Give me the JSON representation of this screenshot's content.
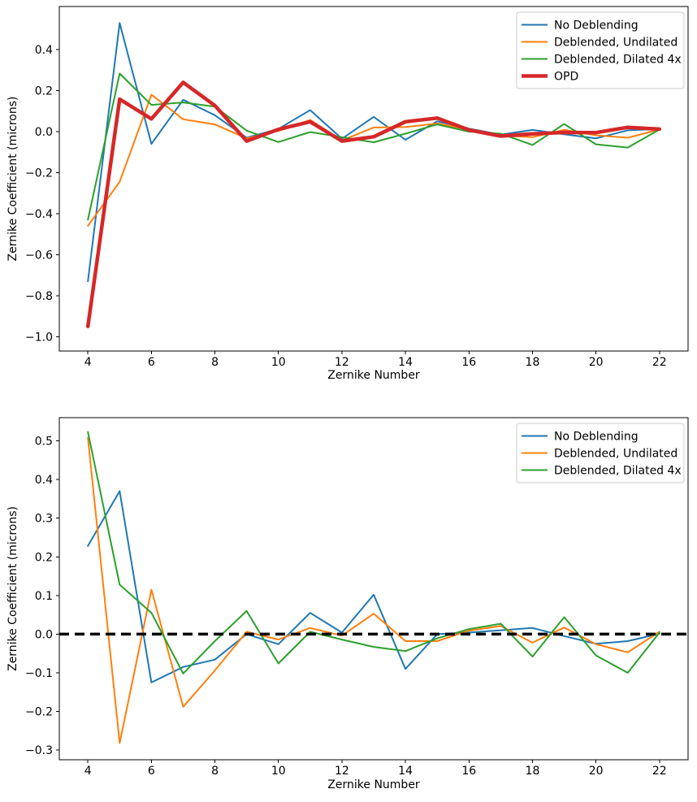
{
  "figure": {
    "background": "#ffffff",
    "xlabel": "Zernike Number",
    "ylabel": "Zernike Coefficient (microns)"
  },
  "colors": {
    "blue": "#1f77b4",
    "orange": "#ff7f0e",
    "green": "#2ca02c",
    "red": "#d62728",
    "zero_line": "#000000",
    "legend_border": "#cccccc"
  },
  "chart_data": [
    {
      "type": "line",
      "title": "",
      "xlabel": "Zernike Number",
      "ylabel": "Zernike Coefficient (microns)",
      "x": [
        4,
        5,
        6,
        7,
        8,
        9,
        10,
        11,
        12,
        13,
        14,
        15,
        16,
        17,
        18,
        19,
        20,
        21,
        22
      ],
      "xticks": [
        4,
        6,
        8,
        10,
        12,
        14,
        16,
        18,
        20,
        22
      ],
      "yticks": [
        0.4,
        0.2,
        0.0,
        -0.2,
        -0.4,
        -0.6,
        -0.8,
        -1.0
      ],
      "xlim": [
        3.1,
        22.9
      ],
      "ylim": [
        -1.07,
        0.61
      ],
      "grid": false,
      "zero_line": false,
      "legend_position": "upper right",
      "series": [
        {
          "name": "No Deblending",
          "color": "#1f77b4",
          "line_width": 2,
          "values": [
            -0.73,
            0.53,
            -0.06,
            0.155,
            0.08,
            -0.03,
            0.013,
            0.105,
            -0.035,
            0.072,
            -0.04,
            0.05,
            0.015,
            -0.015,
            0.008,
            -0.013,
            -0.033,
            0.006,
            0.013
          ]
        },
        {
          "name": "Deblended, Undilated",
          "color": "#ff7f0e",
          "line_width": 2,
          "values": [
            -0.46,
            -0.245,
            0.18,
            0.06,
            0.035,
            -0.033,
            0.003,
            0.057,
            -0.043,
            0.02,
            0.022,
            0.04,
            0.01,
            -0.02,
            -0.027,
            0.008,
            -0.018,
            -0.03,
            0.01
          ]
        },
        {
          "name": "Deblended, Dilated 4x",
          "color": "#2ca02c",
          "line_width": 2,
          "values": [
            -0.43,
            0.283,
            0.13,
            0.142,
            0.122,
            0.005,
            -0.051,
            -0.002,
            -0.027,
            -0.052,
            -0.01,
            0.035,
            0.0,
            -0.01,
            -0.065,
            0.037,
            -0.062,
            -0.078,
            0.01
          ]
        },
        {
          "name": "OPD",
          "color": "#d62728",
          "line_width": 4.5,
          "values": [
            -0.95,
            0.158,
            0.062,
            0.24,
            0.127,
            -0.046,
            0.011,
            0.048,
            -0.046,
            -0.025,
            0.048,
            0.066,
            0.008,
            -0.022,
            -0.011,
            -0.004,
            -0.005,
            0.021,
            0.012
          ]
        }
      ]
    },
    {
      "type": "line",
      "title": "",
      "xlabel": "Zernike Number",
      "ylabel": "Zernike Coefficient (microns)",
      "x": [
        4,
        5,
        6,
        7,
        8,
        9,
        10,
        11,
        12,
        13,
        14,
        15,
        16,
        17,
        18,
        19,
        20,
        21,
        22
      ],
      "xticks": [
        4,
        6,
        8,
        10,
        12,
        14,
        16,
        18,
        20,
        22
      ],
      "yticks": [
        0.5,
        0.4,
        0.3,
        0.2,
        0.1,
        0.0,
        -0.1,
        -0.2,
        -0.3
      ],
      "xlim": [
        3.1,
        22.9
      ],
      "ylim": [
        -0.325,
        0.56
      ],
      "grid": false,
      "zero_line": true,
      "legend_position": "upper right",
      "series": [
        {
          "name": "No Deblending",
          "color": "#1f77b4",
          "line_width": 2,
          "values": [
            0.228,
            0.37,
            -0.125,
            -0.085,
            -0.066,
            0.0,
            -0.026,
            0.055,
            0.004,
            0.102,
            -0.09,
            0.0,
            0.004,
            0.01,
            0.016,
            -0.005,
            -0.025,
            -0.018,
            0.001
          ]
        },
        {
          "name": "Deblended, Undilated",
          "color": "#ff7f0e",
          "line_width": 2,
          "values": [
            0.508,
            -0.282,
            0.115,
            -0.188,
            -0.094,
            0.006,
            -0.014,
            0.016,
            -0.004,
            0.053,
            -0.018,
            -0.018,
            0.009,
            0.021,
            -0.022,
            0.017,
            -0.026,
            -0.047,
            0.006
          ]
        },
        {
          "name": "Deblended, Dilated 4x",
          "color": "#2ca02c",
          "line_width": 2,
          "values": [
            0.523,
            0.128,
            0.055,
            -0.102,
            -0.018,
            0.06,
            -0.076,
            0.006,
            -0.014,
            -0.033,
            -0.044,
            -0.011,
            0.013,
            0.027,
            -0.058,
            0.044,
            -0.055,
            -0.1,
            0.004
          ]
        }
      ]
    }
  ]
}
